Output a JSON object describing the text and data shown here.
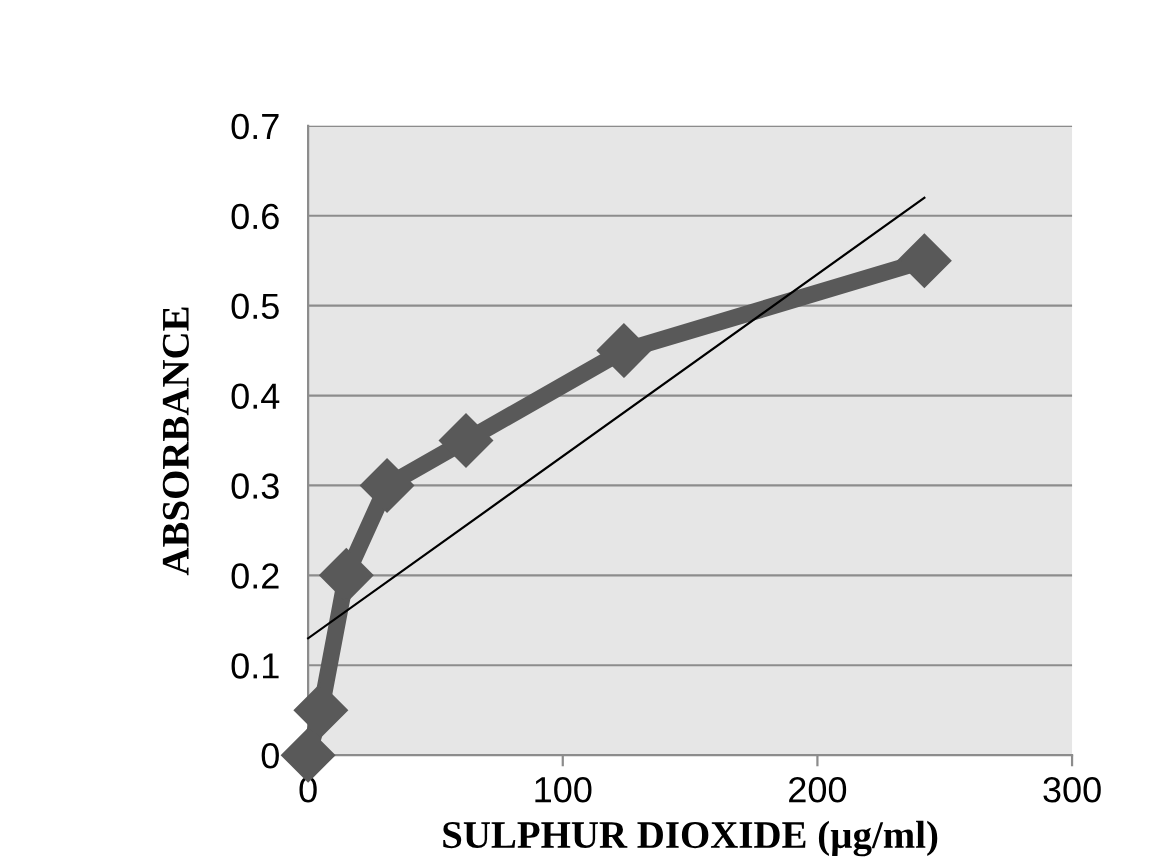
{
  "chart_data": {
    "type": "line",
    "xlabel": "SULPHUR DIOXIDE (µg/ml)",
    "ylabel": "ABSORBANCE",
    "xlim": [
      0,
      300
    ],
    "xticks": [
      0,
      100,
      200,
      300
    ],
    "ylim": [
      0,
      0.7
    ],
    "yticks": [
      0,
      0.1,
      0.2,
      0.3,
      0.4,
      0.5,
      0.6,
      0.7
    ],
    "grid": "y",
    "series": [
      {
        "color": "#595959",
        "marker": "diamond",
        "line_style": "solid",
        "x": [
          0,
          5,
          15,
          31,
          62,
          124,
          242
        ],
        "values": [
          0,
          0.05,
          0.2,
          0.3,
          0.35,
          0.45,
          0.55
        ]
      },
      {
        "color": "#000000",
        "marker": "none",
        "line_style": "solid",
        "x": [
          0,
          242
        ],
        "values": [
          0.13,
          0.62
        ]
      }
    ]
  }
}
